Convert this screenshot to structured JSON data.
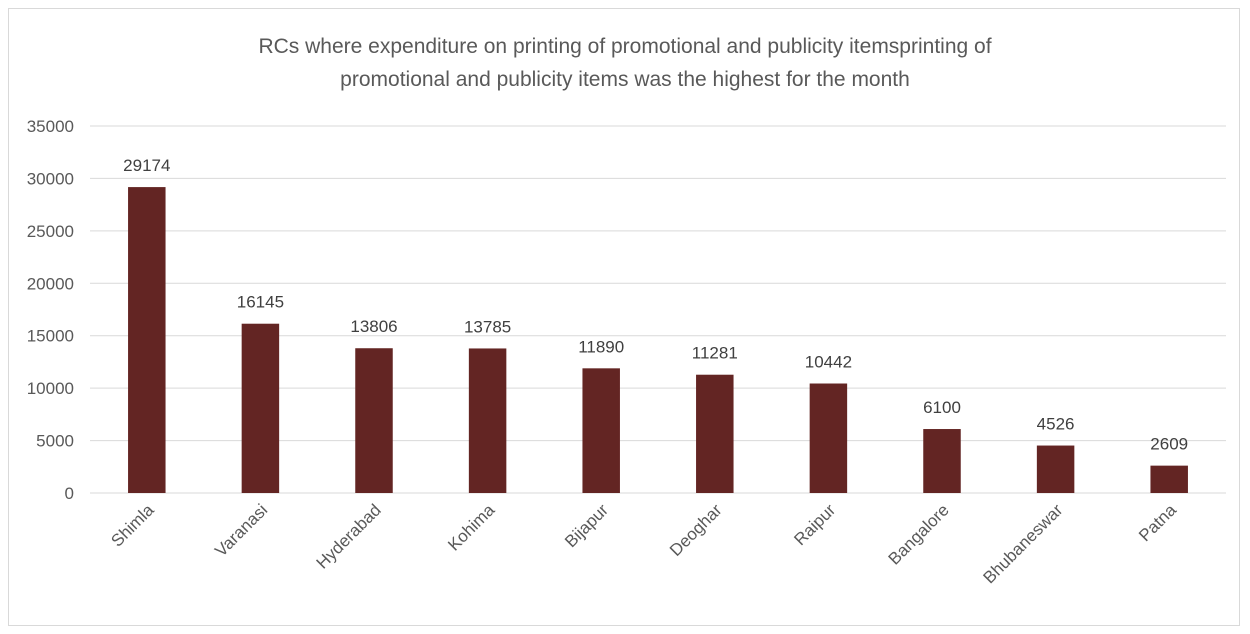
{
  "chart_data": {
    "type": "bar",
    "title_lines": [
      "RCs where expenditure on printing of promotional and publicity itemsprinting of",
      "promotional and publicity items was the highest for the month"
    ],
    "categories": [
      "Shimla",
      "Varanasi",
      "Hyderabad",
      "Kohima",
      "Bijapur",
      "Deoghar",
      "Raipur",
      "Bangalore",
      "Bhubaneswar",
      "Patna"
    ],
    "values": [
      29174,
      16145,
      13806,
      13785,
      11890,
      11281,
      10442,
      6100,
      4526,
      2609
    ],
    "data_labels": [
      "29174",
      "16145",
      "13806",
      "13785",
      "11890",
      "11281",
      "10442",
      "6100",
      "4526",
      "2609"
    ],
    "y_ticks": [
      0,
      5000,
      10000,
      15000,
      20000,
      25000,
      30000,
      35000
    ],
    "ylim": [
      0,
      35000
    ],
    "grid": true,
    "legend": "none",
    "bar_color": "#632523",
    "grid_color": "#d9d9d9"
  }
}
